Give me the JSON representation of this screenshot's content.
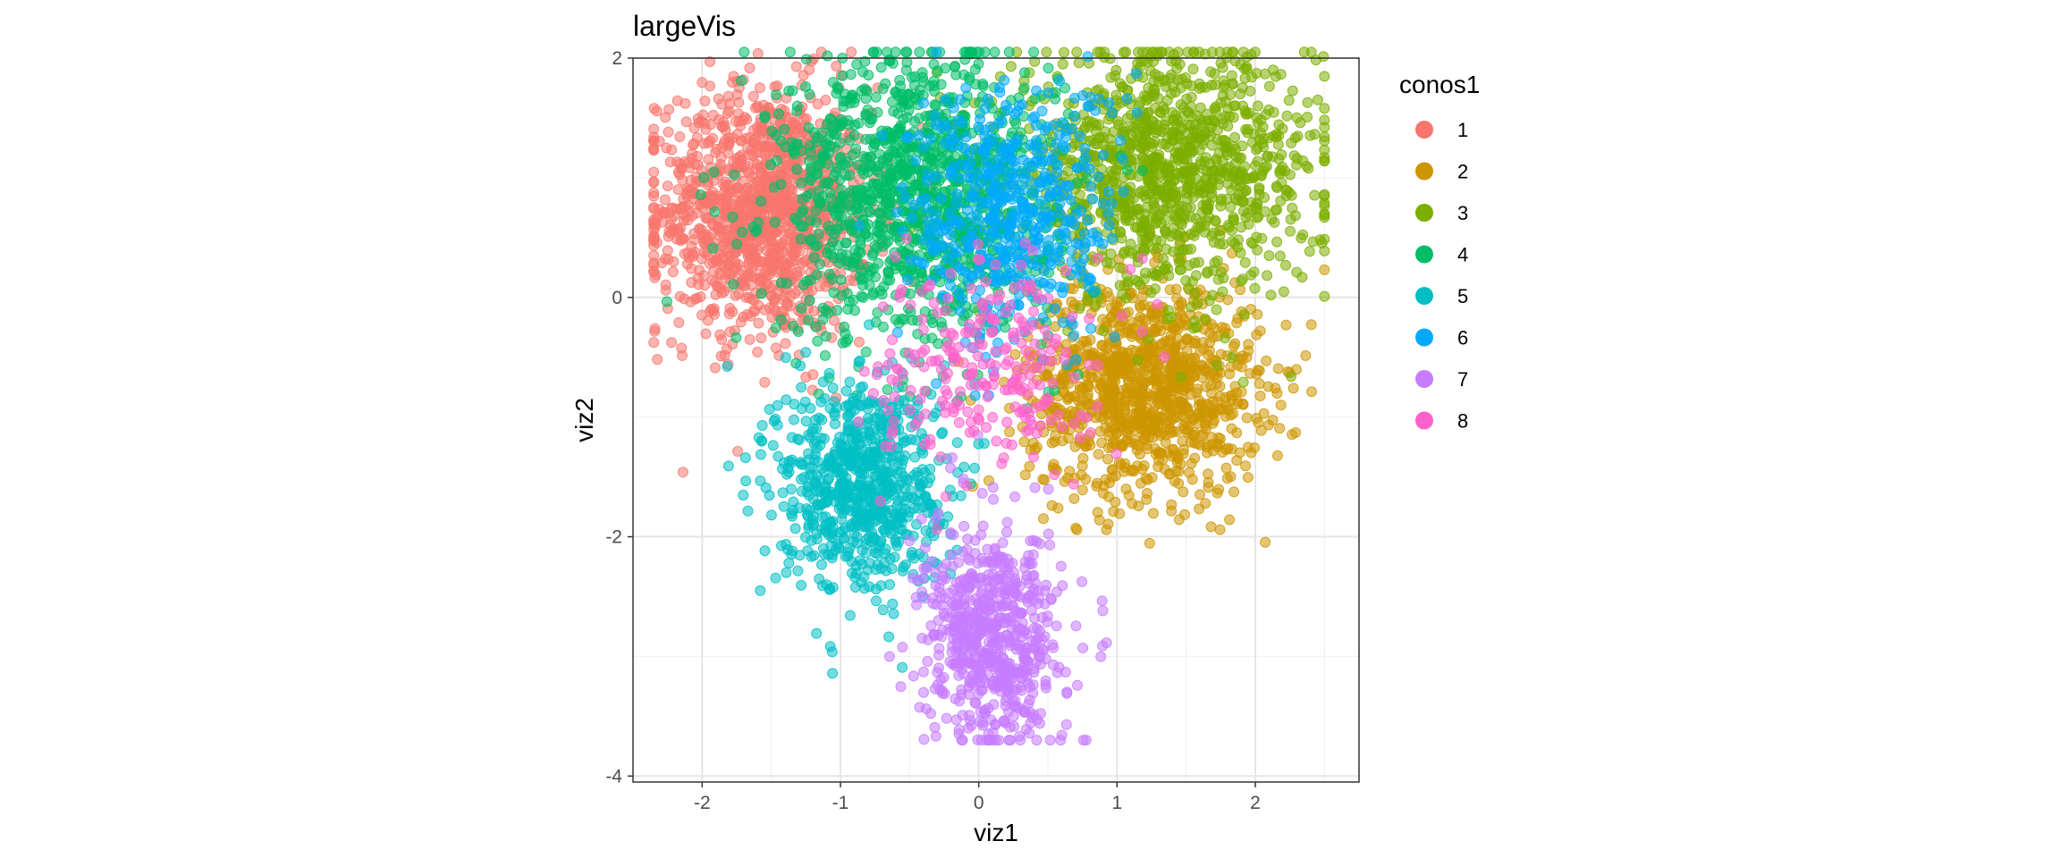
{
  "chart_data": {
    "type": "scatter",
    "title": "largeVis",
    "xlabel": "viz1",
    "ylabel": "viz2",
    "xlim": [
      -2.5,
      2.75
    ],
    "ylim": [
      -4.05,
      2.0
    ],
    "x_ticks": [
      -2,
      -1,
      0,
      1,
      2
    ],
    "x_tick_labels": [
      "-2",
      "-1",
      "0",
      "1",
      "2"
    ],
    "y_ticks": [
      2,
      0,
      -2,
      -4
    ],
    "y_tick_labels": [
      "2",
      "0",
      "-2",
      "-4"
    ],
    "grid": true,
    "legend": {
      "title": "conos1",
      "placement": "right"
    },
    "series": [
      {
        "name": "1",
        "color": "#F8766D",
        "center": [
          -1.55,
          0.72
        ],
        "spread": [
          0.38,
          0.52
        ],
        "n": 1300
      },
      {
        "name": "2",
        "color": "#CD9600",
        "center": [
          1.2,
          -0.75
        ],
        "spread": [
          0.42,
          0.45
        ],
        "n": 1100
      },
      {
        "name": "3",
        "color": "#7CAE00",
        "center": [
          1.35,
          1.05
        ],
        "spread": [
          0.55,
          0.5
        ],
        "n": 1200
      },
      {
        "name": "4",
        "color": "#00BE67",
        "center": [
          -0.45,
          0.85
        ],
        "spread": [
          0.5,
          0.6
        ],
        "n": 1200
      },
      {
        "name": "5",
        "color": "#00BFC4",
        "center": [
          -0.85,
          -1.55
        ],
        "spread": [
          0.3,
          0.45
        ],
        "n": 750
      },
      {
        "name": "6",
        "color": "#00A9FF",
        "center": [
          0.25,
          0.7
        ],
        "spread": [
          0.38,
          0.55
        ],
        "n": 500
      },
      {
        "name": "7",
        "color": "#C77CFF",
        "center": [
          0.1,
          -2.85
        ],
        "spread": [
          0.25,
          0.45
        ],
        "n": 650
      },
      {
        "name": "8",
        "color": "#FF61CC",
        "center": [
          0.05,
          -0.55
        ],
        "spread": [
          0.4,
          0.45
        ],
        "n": 250
      }
    ]
  }
}
